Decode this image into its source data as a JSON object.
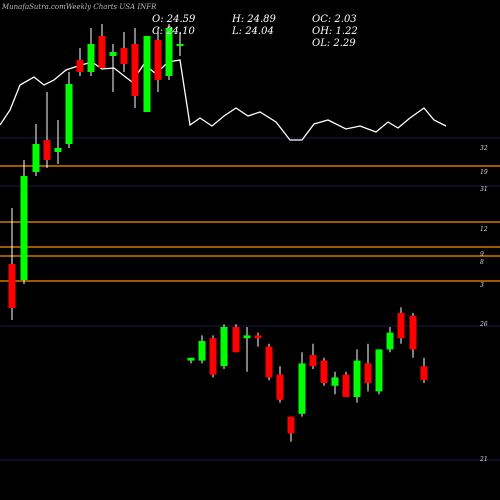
{
  "watermark": "MunafaSutra.com",
  "title": "Weekly Charts USA INFR",
  "ohlc": {
    "open": "O: 24.59",
    "high": "H: 24.89",
    "oc": "OC: 2.03",
    "close": "C: 24.10",
    "low": "L: 24.04",
    "oh": "OH: 1.22",
    "ol": "OL: 2.29"
  },
  "colors": {
    "background": "#000000",
    "up_candle": "#00ff00",
    "down_candle": "#ff0000",
    "price_line": "#ffffff",
    "support_lines": "#ff8c00",
    "grid": "#1a1a50"
  },
  "chart_data": {
    "type": "candlestick",
    "title": "Weekly Charts USA INFR",
    "x_labels": [],
    "y_axis_labels": [
      "32",
      "19",
      "31",
      "12",
      "9",
      "8",
      "3",
      "26",
      "21"
    ],
    "horizontal_levels": [
      {
        "label": "19",
        "role": "support/resistance"
      },
      {
        "label": "12",
        "role": "support/resistance"
      },
      {
        "label": "9",
        "role": "support/resistance"
      },
      {
        "label": "8",
        "role": "support/resistance"
      },
      {
        "label": "3",
        "role": "support/resistance"
      }
    ],
    "candles": [
      {
        "o": 28.0,
        "h": 29.4,
        "l": 26.6,
        "c": 26.9
      },
      {
        "o": 27.6,
        "h": 30.6,
        "l": 27.5,
        "c": 30.2
      },
      {
        "o": 30.3,
        "h": 31.5,
        "l": 30.2,
        "c": 31.0
      },
      {
        "o": 31.1,
        "h": 32.3,
        "l": 30.4,
        "c": 30.6
      },
      {
        "o": 30.8,
        "h": 31.6,
        "l": 30.5,
        "c": 30.9
      },
      {
        "o": 31.0,
        "h": 32.8,
        "l": 30.9,
        "c": 32.5
      },
      {
        "o": 33.1,
        "h": 33.4,
        "l": 32.7,
        "c": 32.8
      },
      {
        "o": 32.8,
        "h": 33.9,
        "l": 32.7,
        "c": 33.5
      },
      {
        "o": 33.7,
        "h": 34.0,
        "l": 32.9,
        "c": 32.9
      },
      {
        "o": 33.2,
        "h": 33.5,
        "l": 32.3,
        "c": 33.3
      },
      {
        "o": 33.4,
        "h": 33.8,
        "l": 32.8,
        "c": 33.0
      },
      {
        "o": 33.5,
        "h": 33.9,
        "l": 31.9,
        "c": 32.2
      },
      {
        "o": 31.8,
        "h": 33.7,
        "l": 31.8,
        "c": 33.7
      },
      {
        "o": 33.6,
        "h": 33.9,
        "l": 32.3,
        "c": 32.6
      },
      {
        "o": 32.7,
        "h": 34.0,
        "l": 32.6,
        "c": 33.9
      },
      {
        "o": 33.5,
        "h": 33.8,
        "l": 33.2,
        "c": 33.5
      },
      {
        "o": 24.8,
        "h": 24.9,
        "l": 24.7,
        "c": 24.9
      },
      {
        "o": 24.8,
        "h": 25.7,
        "l": 24.7,
        "c": 25.5
      },
      {
        "o": 25.6,
        "h": 25.7,
        "l": 24.2,
        "c": 24.3
      },
      {
        "o": 24.6,
        "h": 26.1,
        "l": 24.5,
        "c": 26.0
      },
      {
        "o": 26.0,
        "h": 26.1,
        "l": 25.1,
        "c": 25.1
      },
      {
        "o": 25.6,
        "h": 26.0,
        "l": 24.4,
        "c": 25.7
      },
      {
        "o": 25.7,
        "h": 25.8,
        "l": 25.3,
        "c": 25.6
      },
      {
        "o": 25.3,
        "h": 25.4,
        "l": 24.1,
        "c": 24.2
      },
      {
        "o": 24.3,
        "h": 24.6,
        "l": 23.3,
        "c": 23.4
      },
      {
        "o": 22.8,
        "h": 22.8,
        "l": 21.9,
        "c": 22.2
      },
      {
        "o": 22.9,
        "h": 25.1,
        "l": 22.8,
        "c": 24.7
      },
      {
        "o": 25.0,
        "h": 25.4,
        "l": 24.5,
        "c": 24.6
      },
      {
        "o": 24.8,
        "h": 24.9,
        "l": 23.9,
        "c": 24.0
      },
      {
        "o": 23.9,
        "h": 24.4,
        "l": 23.6,
        "c": 24.2
      },
      {
        "o": 24.3,
        "h": 24.4,
        "l": 23.5,
        "c": 23.5
      },
      {
        "o": 23.5,
        "h": 25.2,
        "l": 23.3,
        "c": 24.8
      },
      {
        "o": 24.7,
        "h": 25.4,
        "l": 23.7,
        "c": 24.0
      },
      {
        "o": 23.7,
        "h": 25.2,
        "l": 23.6,
        "c": 25.2
      },
      {
        "o": 25.2,
        "h": 26.0,
        "l": 25.1,
        "c": 25.8
      },
      {
        "o": 26.5,
        "h": 26.7,
        "l": 25.4,
        "c": 25.6
      },
      {
        "o": 26.4,
        "h": 26.5,
        "l": 24.9,
        "c": 25.2
      },
      {
        "o": 24.6,
        "h": 24.9,
        "l": 24.0,
        "c": 24.1
      }
    ],
    "price_line_note": "white overlay line is a comparison series with no printed scale"
  }
}
